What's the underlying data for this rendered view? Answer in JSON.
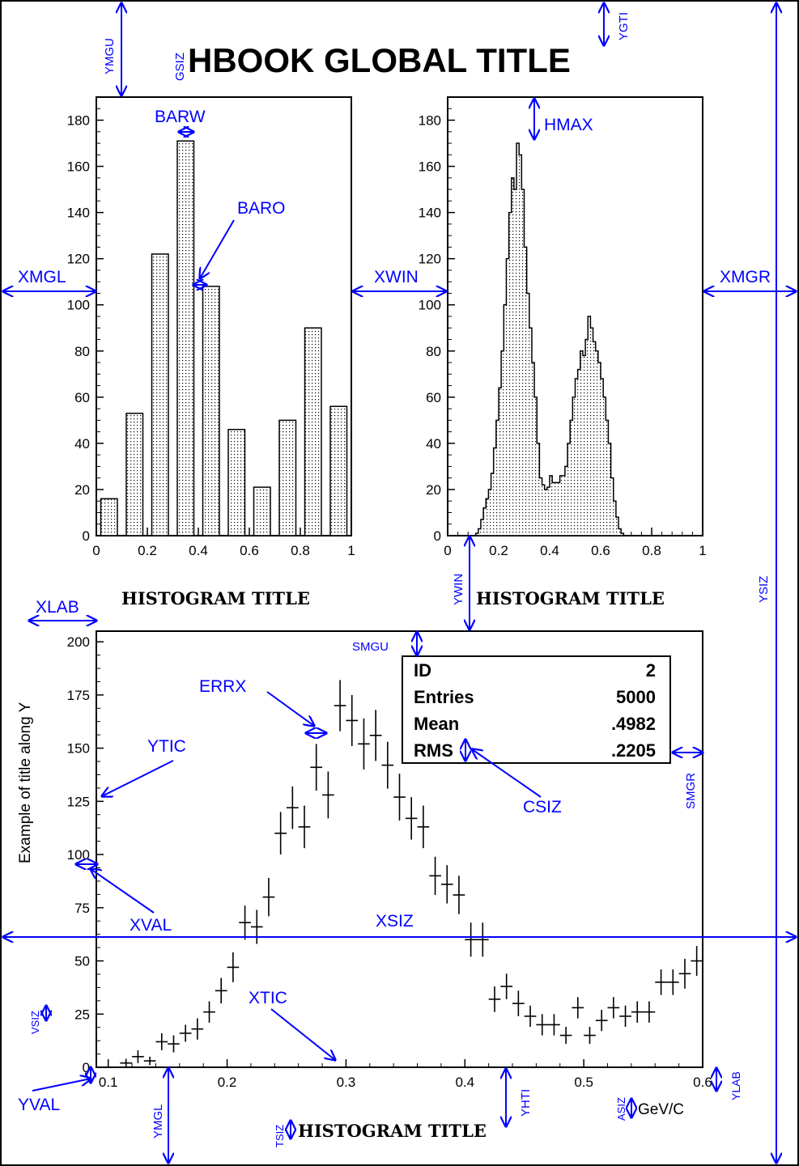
{
  "global_title": "HBOOK GLOBAL TITLE",
  "colors": {
    "annotation": "#0000ff",
    "ink": "#000000",
    "background": "#ffffff"
  },
  "annotations": {
    "ymgu": "YMGU",
    "gsiz": "GSIZ",
    "ygti": "YGTI",
    "barw": "BARW",
    "baro": "BARO",
    "hmax": "HMAX",
    "xmgl": "XMGL",
    "xwin": "XWIN",
    "xmgr": "XMGR",
    "ysiz": "YSIZ",
    "ywin": "YWIN",
    "xlab": "XLAB",
    "smgu": "SMGU",
    "errx": "ERRX",
    "ytic": "YTIC",
    "csiz": "CSIZ",
    "smgr": "SMGR",
    "xval": "XVAL",
    "xsiz": "XSIZ",
    "xtic": "XTIC",
    "vsiz": "VSIZ",
    "yval": "YVAL",
    "ymgl": "YMGL",
    "tsiz": "TSIZ",
    "yhti": "YHTI",
    "asiz": "ASIZ",
    "ylab": "YLAB"
  },
  "chart_data": [
    {
      "type": "bar",
      "title": "HISTOGRAM TITLE",
      "xlabel": "",
      "ylabel": "",
      "xlim": [
        0,
        1
      ],
      "ylim": [
        0,
        190
      ],
      "bar_width": 0.065,
      "x_ticks": [
        "0",
        "0.2",
        "0.4",
        "0.6",
        "0.8",
        "1"
      ],
      "y_ticks": [
        "0",
        "20",
        "40",
        "60",
        "80",
        "100",
        "120",
        "140",
        "160",
        "180"
      ],
      "categories": [
        0.05,
        0.15,
        0.25,
        0.35,
        0.45,
        0.55,
        0.65,
        0.75,
        0.85,
        0.95
      ],
      "values": [
        16,
        53,
        122,
        171,
        108,
        46,
        21,
        50,
        90,
        56
      ]
    },
    {
      "type": "area",
      "title": "HISTOGRAM TITLE",
      "xlabel": "",
      "ylabel": "",
      "xlim": [
        0,
        1
      ],
      "ylim": [
        0,
        190
      ],
      "x_ticks": [
        "0",
        "0.2",
        "0.4",
        "0.6",
        "0.8",
        "1"
      ],
      "y_ticks": [
        "0",
        "20",
        "40",
        "60",
        "80",
        "100",
        "120",
        "140",
        "160",
        "180"
      ],
      "bin_edges_start": 0,
      "bin_width": 0.01,
      "values": [
        0,
        0,
        0,
        0,
        0,
        0,
        0,
        0,
        0,
        0,
        0,
        1,
        3,
        7,
        12,
        16,
        20,
        27,
        38,
        50,
        64,
        80,
        100,
        120,
        140,
        155,
        150,
        170,
        165,
        150,
        125,
        105,
        90,
        75,
        60,
        40,
        25,
        22,
        20,
        21,
        26,
        23,
        23,
        23,
        26,
        26,
        30,
        40,
        50,
        60,
        68,
        72,
        80,
        78,
        85,
        95,
        90,
        84,
        80,
        75,
        68,
        60,
        50,
        40,
        25,
        15,
        8,
        3,
        1,
        0,
        0,
        0,
        0,
        0,
        0,
        0,
        0,
        0,
        0,
        0,
        0,
        0,
        0,
        0,
        0,
        0,
        0,
        0,
        0,
        0,
        0,
        0,
        0,
        0,
        0,
        0,
        0,
        0,
        0,
        0
      ],
      "note_hidden": ""
    },
    {
      "type": "scatter",
      "title": "HISTOGRAM TITLE",
      "xlabel": "GeV/C",
      "ylabel": "Example of title along Y",
      "xlim": [
        0.09,
        0.6
      ],
      "ylim": [
        0,
        205
      ],
      "x_ticks": [
        "0.1",
        "0.2",
        "0.3",
        "0.4",
        "0.5",
        "0.6"
      ],
      "y_ticks": [
        "0",
        "25",
        "50",
        "75",
        "100",
        "125",
        "150",
        "175",
        "200"
      ],
      "stats": [
        {
          "label": "ID",
          "value": "2"
        },
        {
          "label": "Entries",
          "value": "5000"
        },
        {
          "label": "Mean",
          "value": ".4982"
        },
        {
          "label": "RMS",
          "value": ".2205"
        }
      ],
      "points": [
        {
          "x": 0.115,
          "y": 2,
          "ey": 2
        },
        {
          "x": 0.125,
          "y": 5,
          "ey": 3
        },
        {
          "x": 0.135,
          "y": 3,
          "ey": 2
        },
        {
          "x": 0.145,
          "y": 12,
          "ey": 4
        },
        {
          "x": 0.155,
          "y": 11,
          "ey": 4
        },
        {
          "x": 0.165,
          "y": 16,
          "ey": 4
        },
        {
          "x": 0.175,
          "y": 18,
          "ey": 5
        },
        {
          "x": 0.185,
          "y": 26,
          "ey": 5
        },
        {
          "x": 0.195,
          "y": 36,
          "ey": 6
        },
        {
          "x": 0.205,
          "y": 47,
          "ey": 7
        },
        {
          "x": 0.215,
          "y": 68,
          "ey": 8
        },
        {
          "x": 0.225,
          "y": 66,
          "ey": 8
        },
        {
          "x": 0.235,
          "y": 80,
          "ey": 9
        },
        {
          "x": 0.245,
          "y": 110,
          "ey": 10
        },
        {
          "x": 0.255,
          "y": 122,
          "ey": 10
        },
        {
          "x": 0.265,
          "y": 113,
          "ey": 10
        },
        {
          "x": 0.275,
          "y": 141,
          "ey": 11
        },
        {
          "x": 0.285,
          "y": 128,
          "ey": 11
        },
        {
          "x": 0.295,
          "y": 170,
          "ey": 12
        },
        {
          "x": 0.305,
          "y": 163,
          "ey": 12
        },
        {
          "x": 0.315,
          "y": 152,
          "ey": 12
        },
        {
          "x": 0.325,
          "y": 156,
          "ey": 12
        },
        {
          "x": 0.335,
          "y": 142,
          "ey": 11
        },
        {
          "x": 0.345,
          "y": 127,
          "ey": 11
        },
        {
          "x": 0.355,
          "y": 117,
          "ey": 10
        },
        {
          "x": 0.365,
          "y": 113,
          "ey": 10
        },
        {
          "x": 0.375,
          "y": 90,
          "ey": 9
        },
        {
          "x": 0.385,
          "y": 86,
          "ey": 9
        },
        {
          "x": 0.395,
          "y": 81,
          "ey": 9
        },
        {
          "x": 0.405,
          "y": 60,
          "ey": 8
        },
        {
          "x": 0.415,
          "y": 60,
          "ey": 8
        },
        {
          "x": 0.425,
          "y": 32,
          "ey": 6
        },
        {
          "x": 0.435,
          "y": 38,
          "ey": 6
        },
        {
          "x": 0.445,
          "y": 30,
          "ey": 6
        },
        {
          "x": 0.455,
          "y": 24,
          "ey": 5
        },
        {
          "x": 0.465,
          "y": 20,
          "ey": 5
        },
        {
          "x": 0.475,
          "y": 20,
          "ey": 5
        },
        {
          "x": 0.485,
          "y": 15,
          "ey": 4
        },
        {
          "x": 0.495,
          "y": 28,
          "ey": 5
        },
        {
          "x": 0.505,
          "y": 15,
          "ey": 4
        },
        {
          "x": 0.515,
          "y": 22,
          "ey": 5
        },
        {
          "x": 0.525,
          "y": 28,
          "ey": 5
        },
        {
          "x": 0.535,
          "y": 24,
          "ey": 5
        },
        {
          "x": 0.545,
          "y": 26,
          "ey": 5
        },
        {
          "x": 0.555,
          "y": 26,
          "ey": 5
        },
        {
          "x": 0.565,
          "y": 40,
          "ey": 6
        },
        {
          "x": 0.575,
          "y": 40,
          "ey": 6
        },
        {
          "x": 0.585,
          "y": 44,
          "ey": 7
        },
        {
          "x": 0.595,
          "y": 50,
          "ey": 7
        }
      ]
    }
  ]
}
